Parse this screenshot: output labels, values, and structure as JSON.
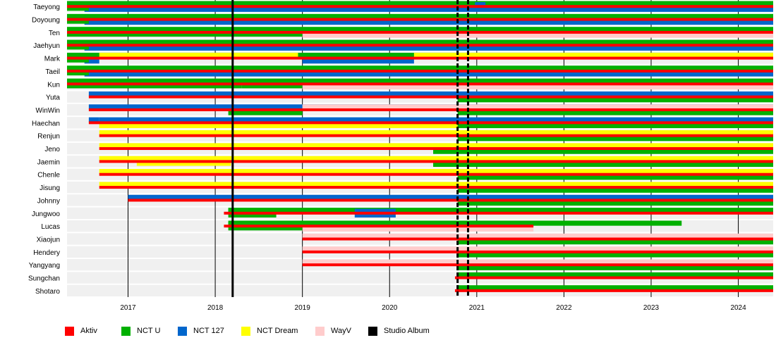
{
  "chart_data": {
    "type": "timeline",
    "xlim": [
      2016.3,
      2024.4
    ],
    "x_ticks": [
      2017,
      2018,
      2019,
      2020,
      2021,
      2022,
      2023,
      2024
    ],
    "albums": [
      2018.2,
      2020.78,
      2020.9
    ],
    "colors": {
      "Aktiv": "#ff0000",
      "NCT U": "#00b000",
      "NCT 127": "#0066cc",
      "NCT Dream": "#ffff00",
      "WayV": "#ffcccc",
      "Studio Album": "#000000"
    },
    "legend": [
      {
        "name": "Aktiv",
        "color": "#ff0000"
      },
      {
        "name": "NCT U",
        "color": "#00b000"
      },
      {
        "name": "NCT 127",
        "color": "#0066cc"
      },
      {
        "name": "NCT Dream",
        "color": "#ffff00"
      },
      {
        "name": "WayV",
        "color": "#ffcccc"
      },
      {
        "name": "Studio Album",
        "color": "#000000"
      }
    ],
    "members": [
      {
        "name": "Taeyong",
        "active": [
          2016.3,
          2024.4
        ],
        "bands": [
          {
            "g": "NCT U",
            "s": 2016.3,
            "e": 2024.4
          },
          {
            "g": "NCT 127",
            "s": 2016.5,
            "e": 2024.4
          }
        ],
        "segments": [
          {
            "g": "NCT U",
            "s": 2016.3,
            "e": 2016.55
          },
          {
            "g": "NCT 127",
            "s": 2020.98,
            "e": 2021.1
          }
        ]
      },
      {
        "name": "Doyoung",
        "active": [
          2016.3,
          2024.4
        ],
        "bands": [
          {
            "g": "NCT U",
            "s": 2016.3,
            "e": 2024.4
          },
          {
            "g": "NCT 127",
            "s": 2016.5,
            "e": 2024.4
          }
        ],
        "segments": [
          {
            "g": "NCT U",
            "s": 2016.3,
            "e": 2016.55
          }
        ]
      },
      {
        "name": "Ten",
        "active": [
          2016.3,
          2024.4
        ],
        "bands": [
          {
            "g": "NCT U",
            "s": 2016.3,
            "e": 2024.4
          },
          {
            "g": "WayV",
            "s": 2019.0,
            "e": 2024.4
          }
        ],
        "segments": [
          {
            "g": "NCT U",
            "s": 2016.3,
            "e": 2019.0
          }
        ]
      },
      {
        "name": "Jaehyun",
        "active": [
          2016.3,
          2024.4
        ],
        "bands": [
          {
            "g": "NCT U",
            "s": 2016.3,
            "e": 2024.4
          },
          {
            "g": "NCT 127",
            "s": 2016.5,
            "e": 2024.4
          }
        ],
        "segments": [
          {
            "g": "NCT U",
            "s": 2016.3,
            "e": 2016.55
          }
        ]
      },
      {
        "name": "Mark",
        "active": [
          2016.3,
          2024.4
        ],
        "bands": [
          {
            "g": "NCT U",
            "s": 2016.3,
            "e": 2024.4
          },
          {
            "g": "NCT 127",
            "s": 2016.5,
            "e": 2016.67
          },
          {
            "g": "NCT Dream",
            "s": 2016.67,
            "e": 2018.95
          },
          {
            "g": "NCT 127",
            "s": 2019.0,
            "e": 2020.28
          },
          {
            "g": "NCT Dream",
            "s": 2020.28,
            "e": 2024.4
          }
        ],
        "segments": [
          {
            "g": "NCT U",
            "s": 2016.3,
            "e": 2016.55
          }
        ]
      },
      {
        "name": "Taeil",
        "active": [
          2016.3,
          2024.4
        ],
        "bands": [
          {
            "g": "NCT U",
            "s": 2016.3,
            "e": 2024.4
          },
          {
            "g": "NCT 127",
            "s": 2016.5,
            "e": 2024.4
          }
        ],
        "segments": [
          {
            "g": "NCT U",
            "s": 2016.3,
            "e": 2016.55
          }
        ]
      },
      {
        "name": "Kun",
        "active": [
          2016.3,
          2024.4
        ],
        "bands": [
          {
            "g": "NCT U",
            "s": 2016.3,
            "e": 2024.4
          },
          {
            "g": "WayV",
            "s": 2019.0,
            "e": 2024.4
          }
        ],
        "segments": [
          {
            "g": "NCT U",
            "s": 2016.3,
            "e": 2018.3
          },
          {
            "g": "NCT U",
            "s": 2018.3,
            "e": 2019.0
          }
        ]
      },
      {
        "name": "Yuta",
        "active": [
          2016.55,
          2024.4
        ],
        "bands": [
          {
            "g": "NCT 127",
            "s": 2016.55,
            "e": 2024.4
          },
          {
            "g": "NCT U",
            "s": 2020.78,
            "e": 2024.4
          }
        ],
        "segments": []
      },
      {
        "name": "WinWin",
        "active": [
          2016.55,
          2024.4
        ],
        "bands": [
          {
            "g": "NCT 127",
            "s": 2016.55,
            "e": 2024.4
          },
          {
            "g": "NCT U",
            "s": 2018.15,
            "e": 2019.0
          },
          {
            "g": "WayV",
            "s": 2019.0,
            "e": 2024.4
          },
          {
            "g": "NCT U",
            "s": 2020.78,
            "e": 2024.4
          }
        ],
        "segments": []
      },
      {
        "name": "Haechan",
        "active": [
          2016.55,
          2024.4
        ],
        "bands": [
          {
            "g": "NCT 127",
            "s": 2016.55,
            "e": 2016.67
          },
          {
            "g": "NCT Dream",
            "s": 2016.67,
            "e": 2024.4
          },
          {
            "g": "NCT 127",
            "s": 2016.67,
            "e": 2024.4
          },
          {
            "g": "NCT U",
            "s": 2020.78,
            "e": 2024.4
          }
        ],
        "segments": []
      },
      {
        "name": "Renjun",
        "active": [
          2016.67,
          2024.4
        ],
        "bands": [
          {
            "g": "NCT Dream",
            "s": 2016.67,
            "e": 2024.4
          },
          {
            "g": "NCT U",
            "s": 2020.78,
            "e": 2024.4
          }
        ],
        "segments": []
      },
      {
        "name": "Jeno",
        "active": [
          2016.67,
          2024.4
        ],
        "bands": [
          {
            "g": "NCT Dream",
            "s": 2016.67,
            "e": 2024.4
          },
          {
            "g": "NCT U",
            "s": 2020.5,
            "e": 2024.4
          }
        ],
        "segments": []
      },
      {
        "name": "Jaemin",
        "active": [
          2016.67,
          2024.4
        ],
        "bands": [
          {
            "g": "NCT Dream",
            "s": 2016.67,
            "e": 2024.4
          },
          {
            "g": "NCT U",
            "s": 2020.5,
            "e": 2024.4
          }
        ],
        "segments": [
          {
            "g": "NCT Dream",
            "s": 2017.1,
            "e": 2018.18
          }
        ]
      },
      {
        "name": "Chenle",
        "active": [
          2016.67,
          2024.4
        ],
        "bands": [
          {
            "g": "NCT Dream",
            "s": 2016.67,
            "e": 2024.4
          },
          {
            "g": "NCT U",
            "s": 2020.78,
            "e": 2024.4
          }
        ],
        "segments": []
      },
      {
        "name": "Jisung",
        "active": [
          2016.67,
          2024.4
        ],
        "bands": [
          {
            "g": "NCT Dream",
            "s": 2016.67,
            "e": 2024.4
          },
          {
            "g": "NCT U",
            "s": 2020.78,
            "e": 2024.4
          }
        ],
        "segments": []
      },
      {
        "name": "Johnny",
        "active": [
          2017.0,
          2024.4
        ],
        "bands": [
          {
            "g": "NCT 127",
            "s": 2017.0,
            "e": 2024.4
          },
          {
            "g": "NCT U",
            "s": 2020.78,
            "e": 2024.4
          }
        ],
        "segments": []
      },
      {
        "name": "Jungwoo",
        "active": [
          2018.1,
          2024.4
        ],
        "bands": [
          {
            "g": "NCT U",
            "s": 2018.15,
            "e": 2024.4
          }
        ],
        "segments": [
          {
            "g": "NCT U",
            "s": 2018.15,
            "e": 2018.7
          },
          {
            "g": "NCT 127",
            "s": 2019.6,
            "e": 2020.07
          }
        ]
      },
      {
        "name": "Lucas",
        "active": [
          2018.1,
          2021.65
        ],
        "bands": [
          {
            "g": "NCT U",
            "s": 2018.15,
            "e": 2023.35
          },
          {
            "g": "WayV",
            "s": 2019.0,
            "e": 2021.65
          }
        ],
        "segments": [
          {
            "g": "NCT U",
            "s": 2018.15,
            "e": 2019.0
          }
        ]
      },
      {
        "name": "Xiaojun",
        "active": [
          2019.0,
          2024.4
        ],
        "bands": [
          {
            "g": "WayV",
            "s": 2019.0,
            "e": 2024.4
          },
          {
            "g": "NCT U",
            "s": 2020.78,
            "e": 2024.4
          }
        ],
        "segments": []
      },
      {
        "name": "Hendery",
        "active": [
          2019.0,
          2024.4
        ],
        "bands": [
          {
            "g": "WayV",
            "s": 2019.0,
            "e": 2024.4
          },
          {
            "g": "NCT U",
            "s": 2020.78,
            "e": 2024.4
          }
        ],
        "segments": []
      },
      {
        "name": "Yangyang",
        "active": [
          2019.0,
          2024.4
        ],
        "bands": [
          {
            "g": "WayV",
            "s": 2019.0,
            "e": 2024.4
          },
          {
            "g": "NCT U",
            "s": 2020.78,
            "e": 2024.4
          }
        ],
        "segments": []
      },
      {
        "name": "Sungchan",
        "active": [
          2020.75,
          2024.4
        ],
        "bands": [
          {
            "g": "NCT U",
            "s": 2020.78,
            "e": 2024.4
          }
        ],
        "segments": []
      },
      {
        "name": "Shotaro",
        "active": [
          2020.75,
          2024.4
        ],
        "bands": [
          {
            "g": "NCT U",
            "s": 2020.78,
            "e": 2024.4
          }
        ],
        "segments": []
      }
    ]
  }
}
